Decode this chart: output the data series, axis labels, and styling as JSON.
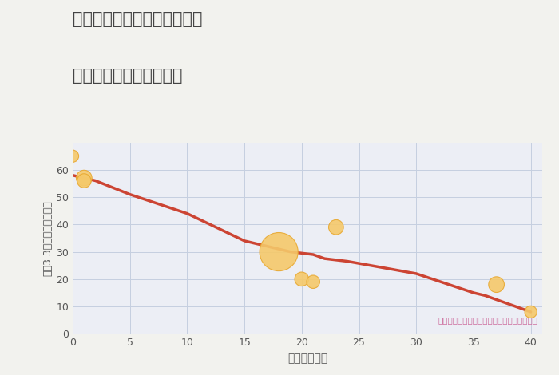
{
  "title_line1": "埼玉県南埼玉郡宮代町国納の",
  "title_line2": "築年数別中古戸建て価格",
  "xlabel": "築年数（年）",
  "ylabel": "坪（3.3㎡）単価（万円）",
  "annotation": "円の大きさは、取引のあった物件面積を示す",
  "background_color": "#f2f2ee",
  "plot_bg_color": "#eceef5",
  "line_color": "#cc4433",
  "scatter_color": "#f5c96a",
  "scatter_edge_color": "#e8a830",
  "grid_color": "#c5cfe0",
  "title_color": "#444444",
  "xlabel_color": "#555555",
  "ylabel_color": "#555555",
  "annotation_color": "#cc6699",
  "xlim": [
    0,
    41
  ],
  "ylim": [
    0,
    70
  ],
  "xticks": [
    0,
    5,
    10,
    15,
    20,
    25,
    30,
    35,
    40
  ],
  "yticks": [
    0,
    10,
    20,
    30,
    40,
    50,
    60
  ],
  "line_x": [
    0,
    1,
    2,
    5,
    10,
    15,
    18,
    19,
    20,
    21,
    22,
    23,
    24,
    30,
    35,
    36,
    40
  ],
  "line_y": [
    58,
    57,
    56,
    51,
    44,
    34,
    31,
    30,
    29.5,
    29,
    27.5,
    27,
    26.5,
    22,
    15,
    14,
    8
  ],
  "scatter_x": [
    0,
    1,
    1,
    18,
    20,
    21,
    23,
    37,
    40
  ],
  "scatter_y": [
    65,
    57,
    56,
    30,
    20,
    19,
    39,
    18,
    8
  ],
  "scatter_sizes": [
    120,
    200,
    160,
    1200,
    160,
    140,
    180,
    200,
    120
  ]
}
